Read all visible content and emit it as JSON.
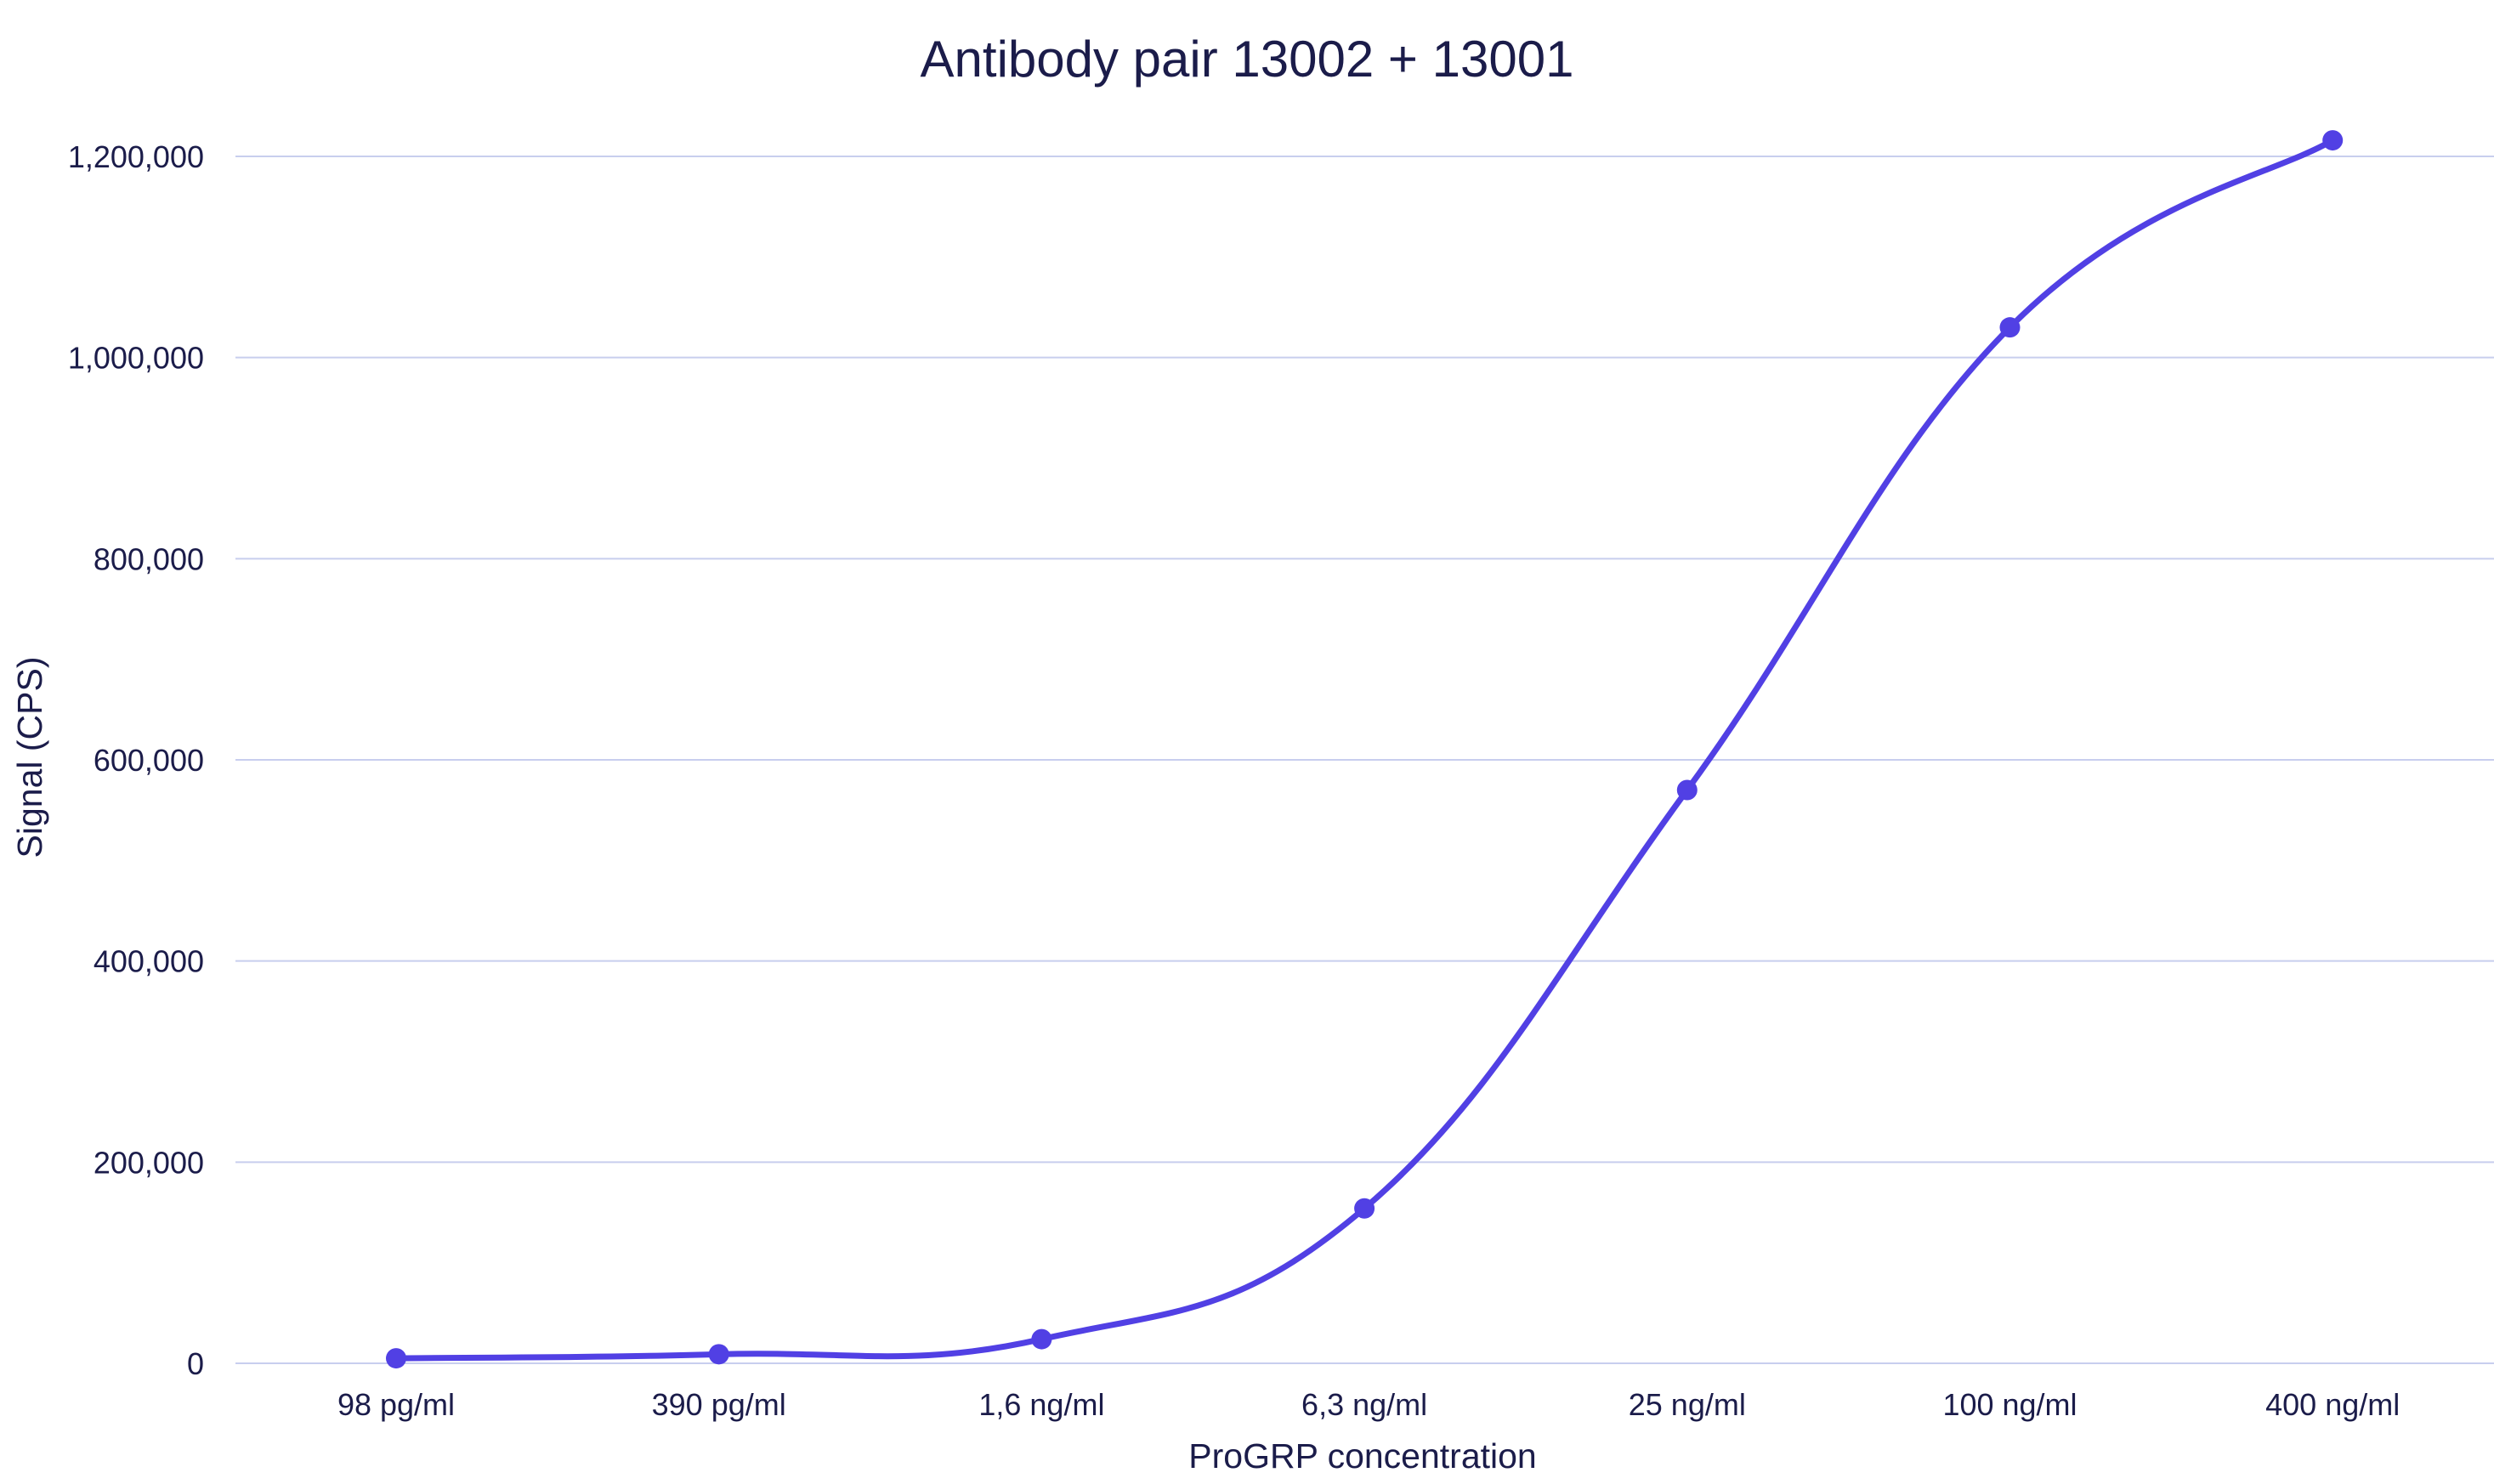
{
  "colors": {
    "series": "#5140E4",
    "grid": "#C8CEEE",
    "text": "#1B1C4A",
    "background": "#FFFFFF"
  },
  "chart_data": {
    "type": "line",
    "title": "Antibody pair 13002 + 13001",
    "xlabel": "ProGRP concentration",
    "ylabel": "Signal (CPS)",
    "categories": [
      "98 pg/ml",
      "390 pg/ml",
      "1,6 ng/ml",
      "6,3 ng/ml",
      "25 ng/ml",
      "100 ng/ml",
      "400 ng/ml"
    ],
    "series": [
      {
        "values": [
          5000,
          9000,
          24000,
          154000,
          570000,
          1030000,
          1216000
        ]
      }
    ],
    "ylim": [
      0,
      1200000
    ],
    "yticks": [
      0,
      200000,
      400000,
      600000,
      800000,
      1000000,
      1200000
    ],
    "ytick_labels": [
      "0",
      "200,000",
      "400,000",
      "600,000",
      "800,000",
      "1,000,000",
      "1,200,000"
    ],
    "grid": "horizontal",
    "smooth": true,
    "markers": true,
    "legend": "none"
  }
}
